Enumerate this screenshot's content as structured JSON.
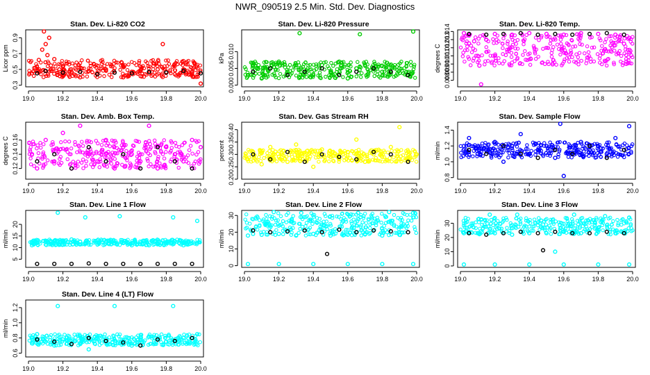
{
  "figure": {
    "title": "NWR_090519  2.5 Min. Std. Dev. Diagnostics"
  },
  "chart_data": [
    {
      "type": "scatter",
      "title": "Stan. Dev. Li-820 CO2",
      "ylabel": "Licor ppm",
      "xlim": [
        19.0,
        20.0
      ],
      "ylim": [
        0.28,
        1.0
      ],
      "xticks": [
        "19.0",
        "19.2",
        "19.4",
        "19.6",
        "19.8",
        "20.0"
      ],
      "yticks": [
        0.3,
        0.5,
        0.7,
        0.9
      ],
      "ytick_labels": [
        "0.3",
        "0.5",
        "0.7",
        "0.9"
      ],
      "color": "#ff0000",
      "series": [
        {
          "role": "all",
          "x": [
            19.02,
            19.04,
            19.06,
            19.08,
            19.09,
            19.1,
            19.11,
            19.12,
            19.13,
            19.15,
            19.18,
            19.2,
            19.25,
            19.3,
            19.35,
            19.4,
            19.45,
            19.5,
            19.55,
            19.6,
            19.65,
            19.7,
            19.75,
            19.78,
            19.8,
            19.85,
            19.9,
            19.95,
            20.0
          ],
          "y": [
            0.45,
            0.52,
            0.62,
            0.75,
            0.98,
            0.82,
            0.68,
            0.9,
            0.55,
            0.63,
            0.5,
            0.42,
            0.47,
            0.4,
            0.48,
            0.44,
            0.5,
            0.46,
            0.4,
            0.47,
            0.49,
            0.45,
            0.5,
            0.82,
            0.47,
            0.44,
            0.5,
            0.46,
            0.32
          ]
        },
        {
          "role": "hourly",
          "x": [
            19.05,
            19.1,
            19.2,
            19.3,
            19.4,
            19.5,
            19.6,
            19.7,
            19.8,
            19.9,
            20.0
          ],
          "y": [
            0.45,
            0.48,
            0.46,
            0.47,
            0.44,
            0.46,
            0.45,
            0.47,
            0.46,
            0.48,
            0.45
          ]
        }
      ]
    },
    {
      "type": "scatter",
      "title": "Stan. Dev. Li-820 Pressure",
      "ylabel": "kPa",
      "xlim": [
        19.0,
        20.0
      ],
      "ylim": [
        -0.0005,
        0.0165
      ],
      "xticks": [
        "19.0",
        "19.2",
        "19.4",
        "19.6",
        "19.8",
        "20.0"
      ],
      "yticks": [
        0.0,
        0.005,
        0.01
      ],
      "ytick_labels": [
        "0.000",
        "0.005",
        "0.010"
      ],
      "color": "#00cc00",
      "series": [
        {
          "role": "all",
          "x": [
            19.02,
            19.05,
            19.1,
            19.15,
            19.2,
            19.25,
            19.3,
            19.32,
            19.4,
            19.45,
            19.5,
            19.55,
            19.6,
            19.65,
            19.67,
            19.7,
            19.8,
            19.9,
            19.98
          ],
          "y": [
            0.003,
            0.006,
            0.002,
            0.005,
            0.007,
            0.004,
            0.006,
            0.0155,
            0.003,
            0.006,
            0.004,
            0.007,
            0.002,
            0.005,
            0.0152,
            0.006,
            0.004,
            0.005,
            0.016
          ]
        },
        {
          "role": "hourly",
          "x": [
            19.05,
            19.15,
            19.25,
            19.35,
            19.45,
            19.55,
            19.65,
            19.75,
            19.85,
            19.95
          ],
          "y": [
            0.004,
            0.005,
            0.003,
            0.004,
            0.005,
            0.003,
            0.004,
            0.005,
            0.004,
            0.003
          ]
        }
      ]
    },
    {
      "type": "scatter",
      "title": "Stan. Dev. Li-820 Temp.",
      "ylabel": "degrees C",
      "xlim": [
        19.0,
        20.0
      ],
      "ylim": [
        0.0072,
        0.0142
      ],
      "xticks": [
        "19.0",
        "19.2",
        "19.4",
        "19.6",
        "19.8",
        "20.0"
      ],
      "yticks": [
        0.008,
        0.009,
        0.01,
        0.011,
        0.012,
        0.013,
        0.014
      ],
      "ytick_labels": [
        "0.008",
        "0.009",
        "0.010",
        "0.011",
        "0.012",
        "0.013",
        "0.014"
      ],
      "color": "#ff00ff",
      "series": [
        {
          "role": "all",
          "x": [
            19.02,
            19.05,
            19.08,
            19.1,
            19.11,
            19.12,
            19.15,
            19.2,
            19.3,
            19.4,
            19.5,
            19.6,
            19.7,
            19.8,
            19.9,
            19.95,
            19.98
          ],
          "y": [
            0.0138,
            0.0135,
            0.0128,
            0.011,
            0.0098,
            0.0075,
            0.013,
            0.0137,
            0.0136,
            0.0138,
            0.0137,
            0.0136,
            0.0138,
            0.0137,
            0.0136,
            0.0125,
            0.0132
          ]
        },
        {
          "role": "hourly",
          "x": [
            19.05,
            19.15,
            19.25,
            19.35,
            19.45,
            19.55,
            19.65,
            19.75,
            19.85,
            19.95
          ],
          "y": [
            0.0137,
            0.0136,
            0.0137,
            0.0138,
            0.0136,
            0.0137,
            0.0136,
            0.0137,
            0.0138,
            0.0136
          ]
        }
      ]
    },
    {
      "type": "scatter",
      "title": "Stan. Dev. Amb. Box Temp.",
      "ylabel": "degrees C",
      "xlim": [
        19.0,
        20.0
      ],
      "ylim": [
        0.105,
        0.185
      ],
      "xticks": [
        "19.0",
        "19.2",
        "19.4",
        "19.6",
        "19.8",
        "20.0"
      ],
      "yticks": [
        0.12,
        0.14,
        0.16
      ],
      "ytick_labels": [
        "0.12",
        "0.14",
        "0.16"
      ],
      "color": "#ff00ff",
      "series": [
        {
          "role": "all",
          "x": [
            19.02,
            19.05,
            19.1,
            19.15,
            19.2,
            19.25,
            19.3,
            19.35,
            19.4,
            19.45,
            19.5,
            19.55,
            19.6,
            19.65,
            19.7,
            19.75,
            19.8,
            19.85,
            19.9,
            19.95,
            20.0
          ],
          "y": [
            0.14,
            0.12,
            0.16,
            0.13,
            0.17,
            0.12,
            0.18,
            0.14,
            0.13,
            0.16,
            0.12,
            0.15,
            0.14,
            0.13,
            0.18,
            0.12,
            0.15,
            0.14,
            0.13,
            0.16,
            0.15
          ]
        },
        {
          "role": "hourly",
          "x": [
            19.05,
            19.15,
            19.25,
            19.35,
            19.45,
            19.55,
            19.65,
            19.75,
            19.85,
            19.95
          ],
          "y": [
            0.13,
            0.14,
            0.12,
            0.15,
            0.13,
            0.14,
            0.12,
            0.15,
            0.13,
            0.12
          ]
        }
      ]
    },
    {
      "type": "scatter",
      "title": "Stan. Dev. Gas Stream RH",
      "ylabel": "percent",
      "xlim": [
        19.0,
        20.0
      ],
      "ylim": [
        0.2,
        0.43
      ],
      "xticks": [
        "19.0",
        "19.2",
        "19.4",
        "19.6",
        "19.8",
        "20.0"
      ],
      "yticks": [
        0.2,
        0.25,
        0.3,
        0.35,
        0.4
      ],
      "ytick_labels": [
        "0.20",
        "0.25",
        "0.30",
        "0.35",
        "0.40"
      ],
      "color": "#ffff00",
      "series": [
        {
          "role": "all",
          "x": [
            19.02,
            19.05,
            19.1,
            19.15,
            19.2,
            19.25,
            19.3,
            19.35,
            19.4,
            19.45,
            19.5,
            19.55,
            19.6,
            19.65,
            19.7,
            19.75,
            19.8,
            19.85,
            19.9,
            19.95,
            20.0
          ],
          "y": [
            0.28,
            0.31,
            0.26,
            0.33,
            0.29,
            0.27,
            0.34,
            0.3,
            0.25,
            0.32,
            0.29,
            0.28,
            0.31,
            0.36,
            0.27,
            0.3,
            0.29,
            0.33,
            0.41,
            0.28,
            0.3
          ]
        },
        {
          "role": "hourly",
          "x": [
            19.05,
            19.15,
            19.25,
            19.35,
            19.45,
            19.55,
            19.65,
            19.75,
            19.85,
            19.95
          ],
          "y": [
            0.3,
            0.28,
            0.31,
            0.27,
            0.3,
            0.29,
            0.28,
            0.31,
            0.3,
            0.27
          ]
        }
      ]
    },
    {
      "type": "scatter",
      "title": "Stan. Dev. Sample Flow",
      "ylabel": "ml/min",
      "xlim": [
        19.0,
        20.0
      ],
      "ylim": [
        0.78,
        1.5
      ],
      "xticks": [
        "19.0",
        "19.2",
        "19.4",
        "19.6",
        "19.8",
        "20.0"
      ],
      "yticks": [
        0.8,
        1.0,
        1.2,
        1.4
      ],
      "ytick_labels": [
        "0.8",
        "1.0",
        "1.2",
        "1.4"
      ],
      "color": "#0000ff",
      "series": [
        {
          "role": "all",
          "x": [
            19.02,
            19.05,
            19.1,
            19.15,
            19.2,
            19.25,
            19.3,
            19.35,
            19.4,
            19.45,
            19.5,
            19.55,
            19.58,
            19.6,
            19.65,
            19.7,
            19.75,
            19.8,
            19.85,
            19.9,
            19.98
          ],
          "y": [
            1.2,
            1.3,
            1.1,
            1.15,
            1.25,
            1.0,
            1.2,
            1.35,
            1.1,
            1.15,
            1.2,
            1.05,
            1.48,
            0.82,
            1.1,
            1.25,
            1.15,
            1.2,
            1.1,
            1.3,
            1.45
          ]
        },
        {
          "role": "hourly",
          "x": [
            19.05,
            19.15,
            19.25,
            19.35,
            19.45,
            19.55,
            19.65,
            19.75,
            19.85,
            19.95
          ],
          "y": [
            1.15,
            1.1,
            1.2,
            1.1,
            1.05,
            1.15,
            1.1,
            1.2,
            1.05,
            1.15
          ]
        }
      ]
    },
    {
      "type": "scatter",
      "title": "Stan. Dev. Line 1 Flow",
      "ylabel": "ml/min",
      "xlim": [
        19.0,
        20.0
      ],
      "ylim": [
        1.5,
        26
      ],
      "xticks": [
        "19.0",
        "19.2",
        "19.4",
        "19.6",
        "19.8",
        "20.0"
      ],
      "yticks": [
        5,
        10,
        15,
        20
      ],
      "ytick_labels": [
        "5",
        "10",
        "15",
        "20"
      ],
      "color": "#00ffff",
      "series": [
        {
          "role": "all",
          "x": [
            19.02,
            19.05,
            19.1,
            19.15,
            19.17,
            19.2,
            19.25,
            19.3,
            19.33,
            19.4,
            19.45,
            19.5,
            19.53,
            19.55,
            19.6,
            19.65,
            19.7,
            19.75,
            19.8,
            19.84,
            19.9,
            19.98
          ],
          "y": [
            11,
            12,
            12.5,
            12.8,
            25,
            13,
            13.5,
            12.5,
            23,
            13,
            12.5,
            12,
            23.5,
            12,
            11,
            11.5,
            11,
            11.5,
            12,
            23,
            11,
            21.5
          ]
        },
        {
          "role": "hourly",
          "x": [
            19.05,
            19.15,
            19.25,
            19.35,
            19.45,
            19.55,
            19.65,
            19.75,
            19.85,
            19.95
          ],
          "y": [
            3,
            3,
            3,
            3.2,
            3,
            3,
            3,
            3,
            3,
            3
          ]
        }
      ]
    },
    {
      "type": "scatter",
      "title": "Stan. Dev. Line 2 Flow",
      "ylabel": "ml/min",
      "xlim": [
        19.0,
        20.0
      ],
      "ylim": [
        -1,
        33
      ],
      "xticks": [
        "19.0",
        "19.2",
        "19.4",
        "19.6",
        "19.8",
        "20.0"
      ],
      "yticks": [
        0,
        10,
        20,
        30
      ],
      "ytick_labels": [
        "0",
        "10",
        "20",
        "30"
      ],
      "color": "#00ffff",
      "series": [
        {
          "role": "all",
          "x": [
            19.02,
            19.05,
            19.1,
            19.17,
            19.2,
            19.3,
            19.33,
            19.4,
            19.5,
            19.6,
            19.66,
            19.7,
            19.8,
            19.84,
            19.9,
            19.98
          ],
          "y": [
            18,
            19,
            18.5,
            32,
            19,
            18,
            31.5,
            19,
            18,
            18.5,
            31.5,
            19,
            18,
            32,
            18.5,
            31.5
          ]
        },
        {
          "role": "baseline",
          "x": [
            19.02,
            19.2,
            19.4,
            19.6,
            19.8,
            19.98
          ],
          "y": [
            1,
            1,
            1,
            1,
            1,
            1
          ]
        },
        {
          "role": "hourly",
          "x": [
            19.05,
            19.15,
            19.25,
            19.35,
            19.45,
            19.48,
            19.55,
            19.65,
            19.75,
            19.85,
            19.95
          ],
          "y": [
            21,
            20,
            20.5,
            21,
            20,
            7,
            21.5,
            20,
            21,
            20.5,
            20
          ]
        }
      ]
    },
    {
      "type": "scatter",
      "title": "Stan. Dev. Line 3 Flow",
      "ylabel": "ml/min",
      "xlim": [
        19.0,
        20.0
      ],
      "ylim": [
        -1,
        39
      ],
      "xticks": [
        "19.0",
        "19.2",
        "19.4",
        "19.6",
        "19.8",
        "20.0"
      ],
      "yticks": [
        0,
        10,
        20,
        30
      ],
      "ytick_labels": [
        "0",
        "10",
        "20",
        "30"
      ],
      "color": "#00ffff",
      "series": [
        {
          "role": "all",
          "x": [
            19.02,
            19.05,
            19.1,
            19.17,
            19.2,
            19.3,
            19.33,
            19.4,
            19.5,
            19.55,
            19.6,
            19.66,
            19.7,
            19.8,
            19.84,
            19.9,
            19.98
          ],
          "y": [
            23,
            24,
            23,
            36,
            23,
            22,
            36,
            23,
            23,
            10,
            24,
            36,
            23,
            24,
            35,
            23,
            34
          ]
        },
        {
          "role": "baseline",
          "x": [
            19.02,
            19.2,
            19.4,
            19.6,
            19.8,
            19.98
          ],
          "y": [
            1,
            1,
            1,
            1,
            1,
            1
          ]
        },
        {
          "role": "hourly",
          "x": [
            19.05,
            19.15,
            19.25,
            19.35,
            19.45,
            19.48,
            19.55,
            19.65,
            19.75,
            19.85,
            19.95
          ],
          "y": [
            23,
            22,
            23,
            24,
            23,
            11,
            24,
            23,
            23,
            24,
            23
          ]
        }
      ]
    },
    {
      "type": "scatter",
      "title": "Stan. Dev. Line 4 (LT) Flow",
      "ylabel": "ml/min",
      "xlim": [
        19.0,
        20.0
      ],
      "ylim": [
        0.55,
        1.3
      ],
      "xticks": [
        "19.0",
        "19.2",
        "19.4",
        "19.6",
        "19.8",
        "20.0"
      ],
      "yticks": [
        0.6,
        0.8,
        1.0,
        1.2
      ],
      "ytick_labels": [
        "0.6",
        "0.8",
        "1.0",
        "1.2"
      ],
      "color": "#00ffff",
      "series": [
        {
          "role": "all",
          "x": [
            19.02,
            19.05,
            19.1,
            19.15,
            19.17,
            19.2,
            19.3,
            19.35,
            19.4,
            19.5,
            19.55,
            19.6,
            19.65,
            19.7,
            19.8,
            19.84,
            19.9,
            19.98
          ],
          "y": [
            0.8,
            0.85,
            0.75,
            0.7,
            1.22,
            0.78,
            0.72,
            0.65,
            0.8,
            1.22,
            0.75,
            0.7,
            0.78,
            0.82,
            0.75,
            1.22,
            0.8,
            0.85
          ]
        },
        {
          "role": "hourly",
          "x": [
            19.05,
            19.15,
            19.25,
            19.35,
            19.45,
            19.55,
            19.65,
            19.75,
            19.85,
            19.95
          ],
          "y": [
            0.78,
            0.75,
            0.72,
            0.8,
            0.76,
            0.74,
            0.7,
            0.78,
            0.76,
            0.8
          ]
        }
      ]
    }
  ]
}
